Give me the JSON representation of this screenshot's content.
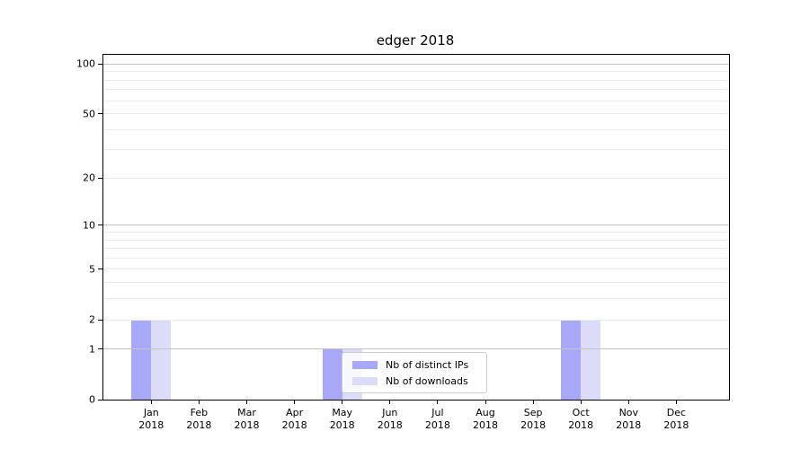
{
  "chart_data": {
    "type": "bar",
    "title": "edger 2018",
    "categories": [
      "Jan",
      "Feb",
      "Mar",
      "Apr",
      "May",
      "Jun",
      "Jul",
      "Aug",
      "Sep",
      "Oct",
      "Nov",
      "Dec"
    ],
    "year": "2018",
    "series": [
      {
        "name": "Nb of distinct IPs",
        "key": "distinct-ips",
        "color": "#a8a8f8",
        "values": [
          2,
          0,
          0,
          0,
          1,
          0,
          0,
          0,
          0,
          2,
          0,
          0
        ]
      },
      {
        "name": "Nb of downloads",
        "key": "downloads",
        "color": "#dcdcf8",
        "values": [
          2,
          0,
          0,
          0,
          1,
          0,
          0,
          0,
          0,
          2,
          0,
          0
        ]
      }
    ],
    "xlabel": "",
    "ylabel": "",
    "yscale": "log1p",
    "ylim": [
      0,
      113
    ],
    "y_ticks": [
      0,
      1,
      2,
      5,
      10,
      20,
      50,
      100
    ],
    "y_major_gridlines": [
      1,
      10,
      100
    ],
    "y_minor_gridlines": [
      2,
      3,
      4,
      5,
      6,
      7,
      8,
      9,
      20,
      30,
      40,
      50,
      60,
      70,
      80,
      90
    ],
    "grid": "both horizontal",
    "legend_position": "lower center",
    "colors": {
      "grid_major": "#c4c4c4",
      "grid_minor": "#ebebeb",
      "spine": "#000000",
      "text": "#000000",
      "background": "#ffffff"
    }
  }
}
